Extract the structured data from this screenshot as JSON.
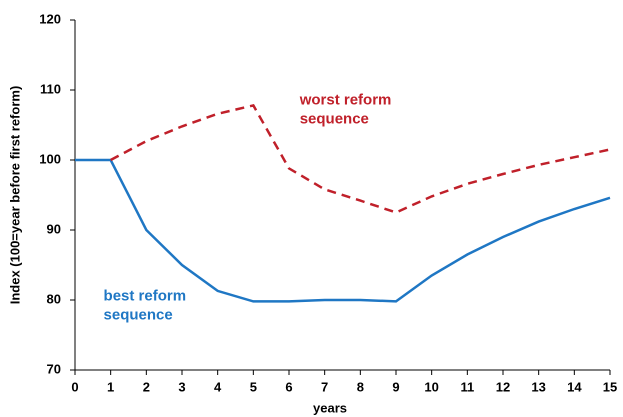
{
  "chart_data": {
    "type": "line",
    "x": [
      0,
      1,
      2,
      3,
      4,
      5,
      6,
      7,
      8,
      9,
      10,
      11,
      12,
      13,
      14,
      15
    ],
    "series": [
      {
        "name": "best reform sequence",
        "color": "#1f77c4",
        "style": "solid",
        "values": [
          100,
          100,
          90,
          85,
          81.3,
          79.8,
          79.8,
          80,
          80,
          79.8,
          83.5,
          86.5,
          89,
          91.2,
          93,
          94.6
        ]
      },
      {
        "name": "worst reform sequence",
        "color": "#c0202a",
        "style": "dashed",
        "values": [
          null,
          100,
          102.7,
          104.8,
          106.6,
          107.8,
          98.8,
          95.8,
          94.2,
          92.5,
          94.8,
          96.6,
          98,
          99.3,
          100.4,
          101.5
        ]
      }
    ],
    "annotations": [
      {
        "lines": [
          "worst reform",
          "sequence"
        ],
        "color": "#c0202a",
        "x": 6.3,
        "y": 108.5
      },
      {
        "lines": [
          "best reform",
          "sequence"
        ],
        "color": "#1f77c4",
        "x": 0.8,
        "y": 80.5
      }
    ],
    "xlabel": "years",
    "ylabel": "Index (100=year before first reform)",
    "xlim": [
      0,
      15
    ],
    "xticks": [
      0,
      1,
      2,
      3,
      4,
      5,
      6,
      7,
      8,
      9,
      10,
      11,
      12,
      13,
      14,
      15
    ],
    "ylim": [
      70,
      120
    ],
    "yticks": [
      70,
      80,
      90,
      100,
      110,
      120
    ],
    "grid": false
  }
}
